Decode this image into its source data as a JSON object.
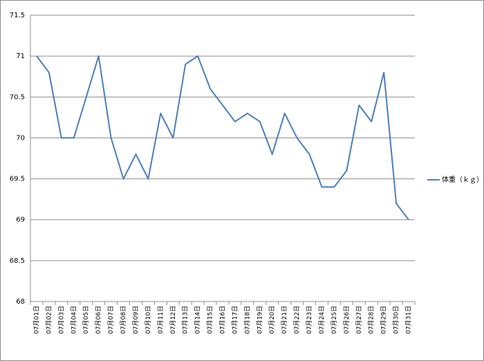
{
  "chart_data": {
    "type": "line",
    "categories": [
      "07月01日",
      "07月02日",
      "07月03日",
      "07月04日",
      "07月05日",
      "07月06日",
      "07月07日",
      "07月08日",
      "07月09日",
      "07月10日",
      "07月11日",
      "07月12日",
      "07月13日",
      "07月14日",
      "07月15日",
      "07月16日",
      "07月17日",
      "07月18日",
      "07月19日",
      "07月20日",
      "07月21日",
      "07月22日",
      "07月23日",
      "07月24日",
      "07月25日",
      "07月26日",
      "07月27日",
      "07月28日",
      "07月29日",
      "07月30日",
      "07月31日"
    ],
    "series": [
      {
        "name": "体重（ｋｇ）",
        "color": "#4a7ebb",
        "values": [
          71,
          70.8,
          70,
          70,
          70.5,
          71,
          70,
          69.5,
          69.8,
          69.5,
          70.3,
          70,
          70.9,
          71,
          70.6,
          70.4,
          70.2,
          70.3,
          70.2,
          69.8,
          70.3,
          70,
          69.8,
          69.4,
          69.4,
          69.6,
          70.4,
          70.2,
          70.8,
          69.2,
          69
        ]
      }
    ],
    "ylim": [
      68,
      71.5
    ],
    "yticks": [
      68,
      68.5,
      69,
      69.5,
      70,
      70.5,
      71,
      71.5
    ],
    "grid": true,
    "legend": "right"
  }
}
